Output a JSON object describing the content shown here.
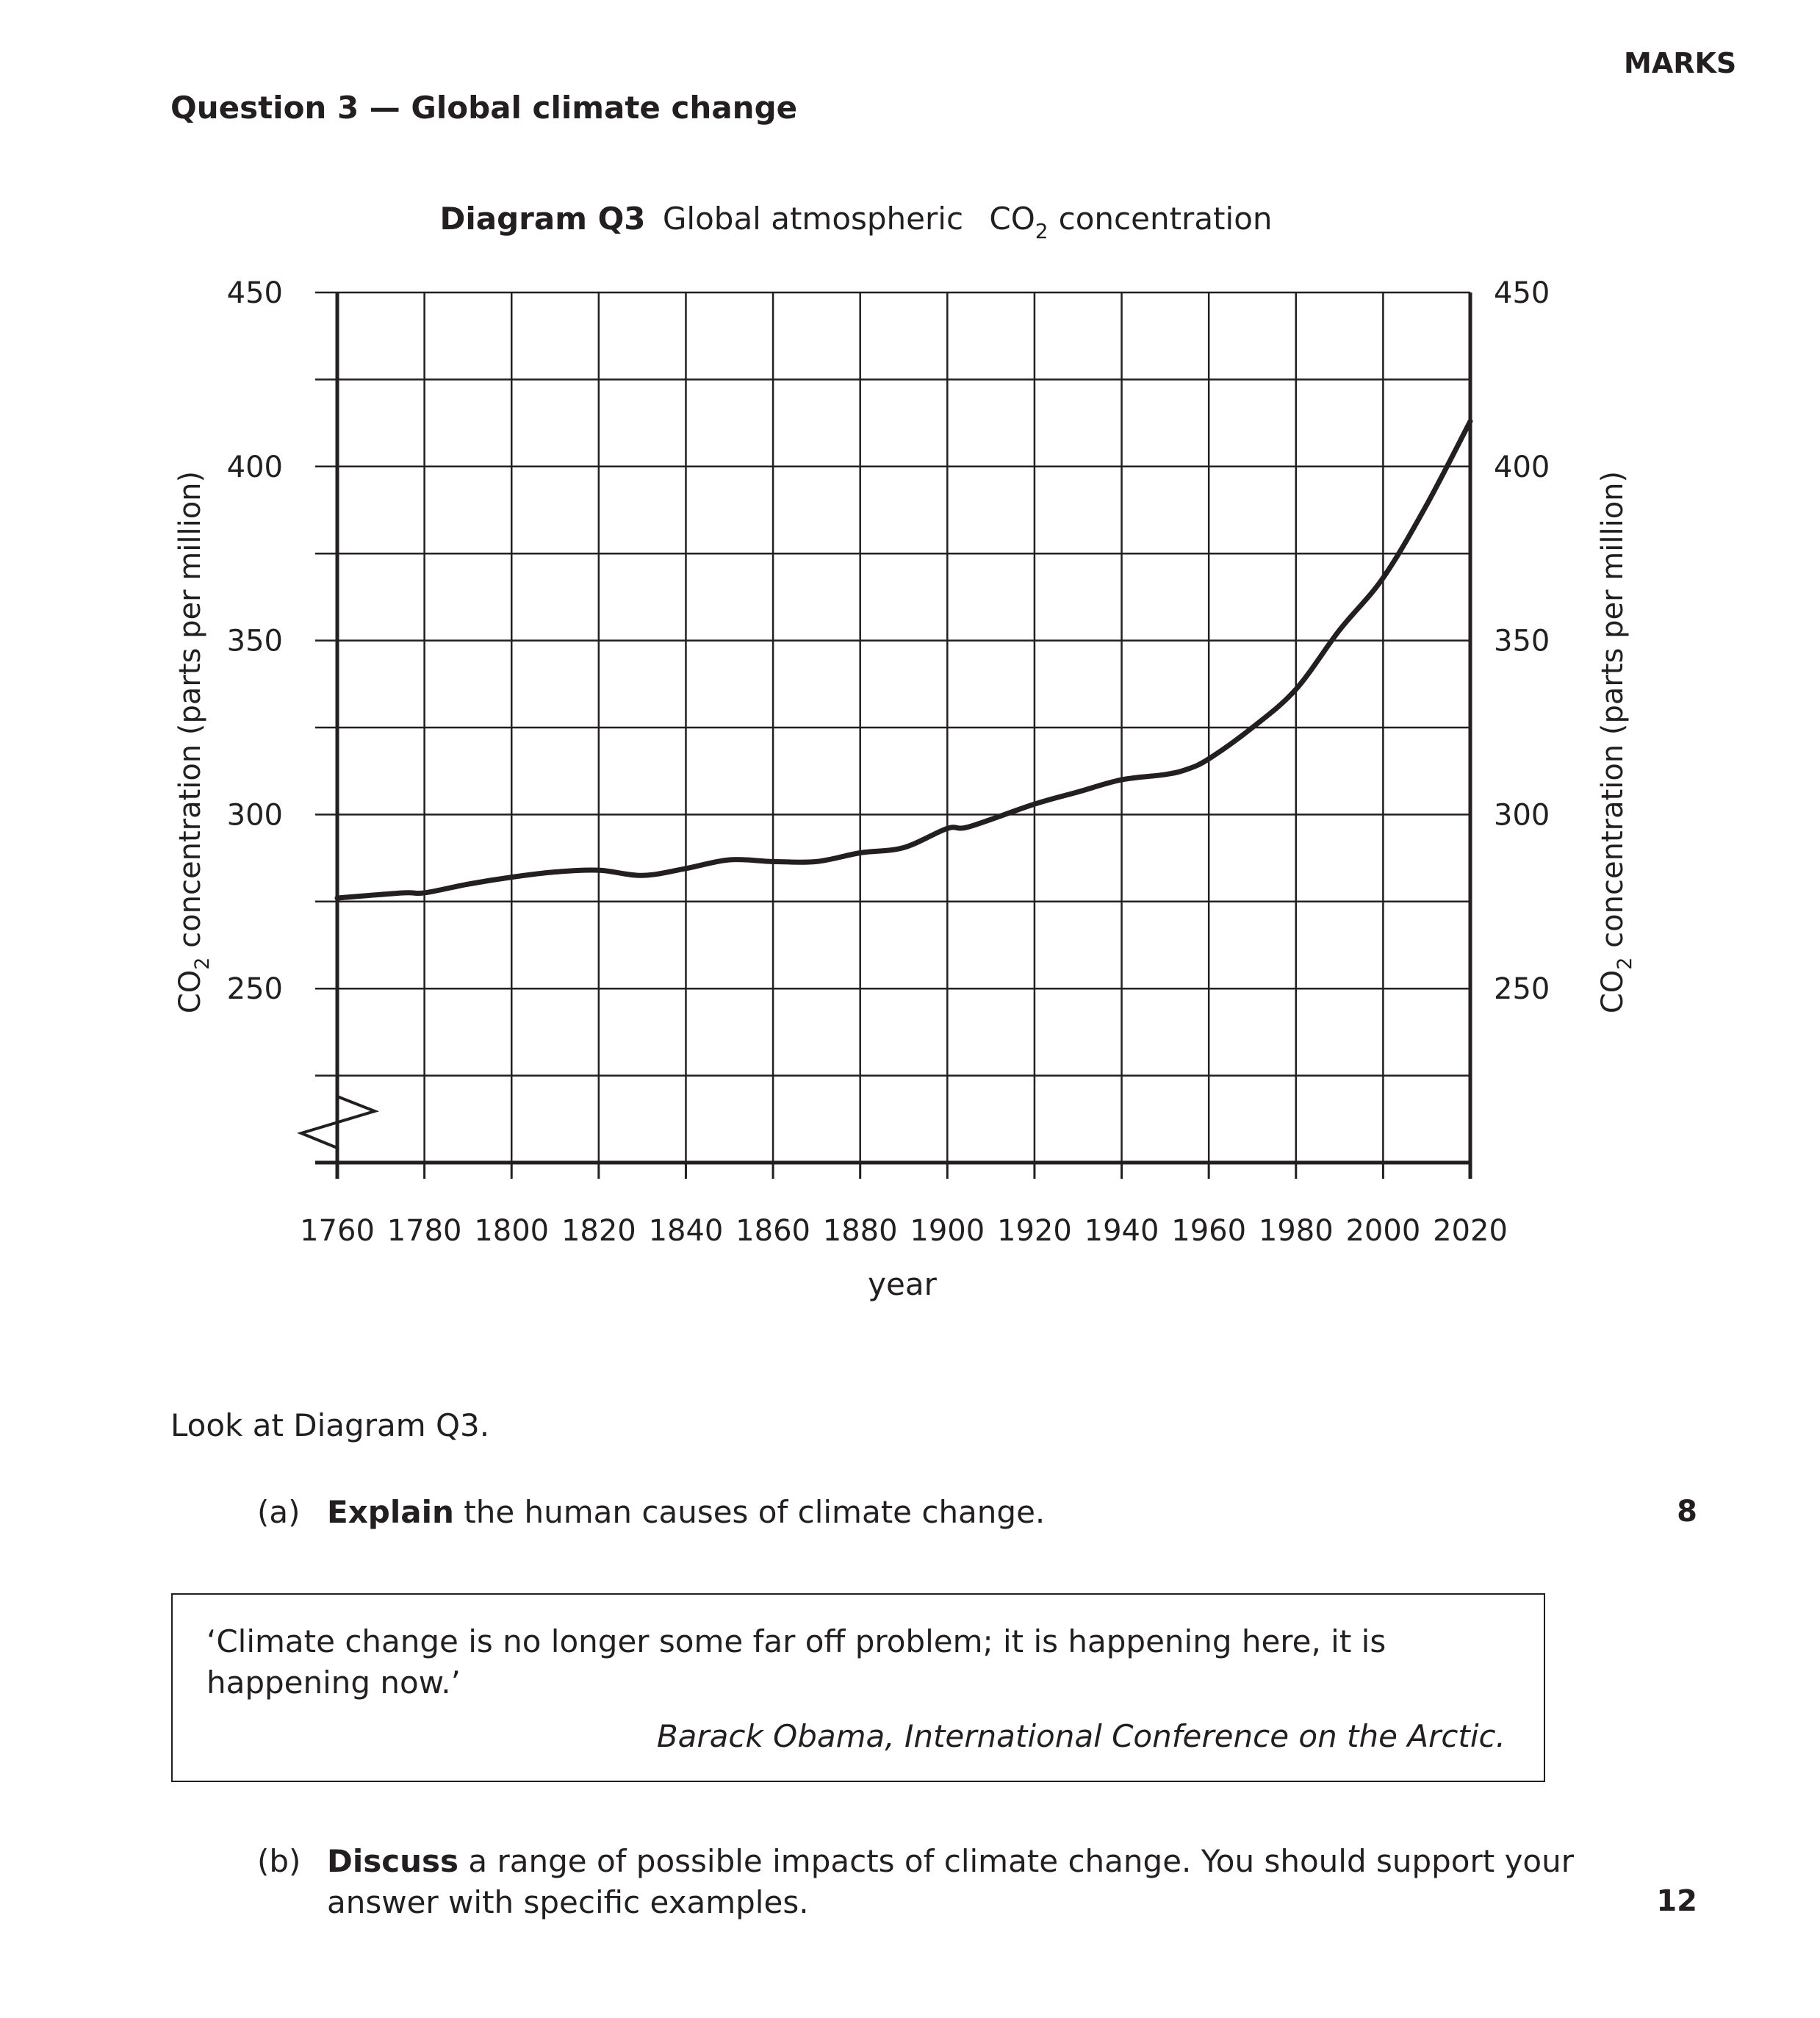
{
  "header": {
    "marks_label": "MARKS"
  },
  "question": {
    "title": "Question 3 — Global climate change"
  },
  "diagram": {
    "title_bold": "Diagram Q3",
    "title_rest": "Global atmospheric",
    "title_chem": "CO",
    "title_sub": "2",
    "title_end": "concentration"
  },
  "chart_data": {
    "type": "line",
    "xlabel": "year",
    "ylabel_chem": "CO",
    "ylabel_sub": "2",
    "ylabel_rest": " concentration (parts per million)",
    "xlim": [
      1760,
      2020
    ],
    "ylim": [
      200,
      450
    ],
    "x_ticks": [
      1760,
      1780,
      1800,
      1820,
      1840,
      1860,
      1880,
      1900,
      1920,
      1940,
      1960,
      1980,
      2000,
      2020
    ],
    "y_ticks": [
      250,
      300,
      350,
      400,
      450
    ],
    "grid": true,
    "axis_break": true,
    "series": [
      {
        "x": [
          1760,
          1775,
          1780,
          1790,
          1800,
          1810,
          1820,
          1830,
          1840,
          1850,
          1860,
          1870,
          1880,
          1890,
          1900,
          1905,
          1920,
          1930,
          1940,
          1950,
          1955,
          1960,
          1970,
          1980,
          1990,
          2000,
          2010,
          2020
        ],
        "y": [
          276,
          277.5,
          277.5,
          280,
          282,
          283.5,
          284,
          282.5,
          284.5,
          287,
          286.5,
          286.5,
          289,
          290.5,
          296,
          296.5,
          303,
          306.5,
          310,
          311.5,
          313,
          316,
          325,
          336,
          353,
          368,
          389,
          413
        ]
      }
    ]
  },
  "intro_text": "Look at Diagram Q3.",
  "part_a": {
    "label": "(a)",
    "verb": "Explain",
    "text": " the human causes of climate change.",
    "marks": "8"
  },
  "quote": {
    "text": "‘Climate change is no longer some far off problem; it is happening here, it is happening now.’",
    "source": "Barack Obama, International Conference on the Arctic."
  },
  "part_b": {
    "label": "(b)",
    "verb": "Discuss",
    "text": " a range of possible impacts of climate change. You should support your answer with specific examples.",
    "marks": "12"
  }
}
